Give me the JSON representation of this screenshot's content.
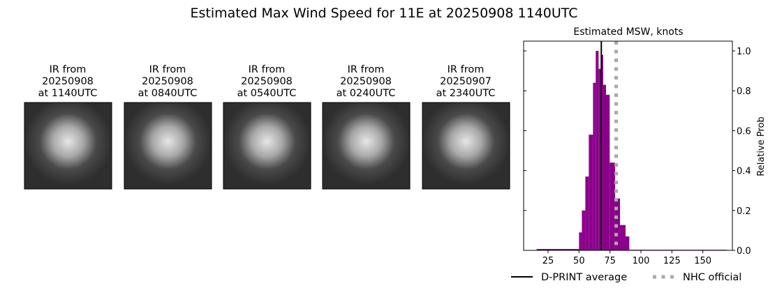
{
  "title": "Estimated Max Wind Speed for 11E at 20250908 1140UTC",
  "images": [
    {
      "line1": "IR from",
      "line2": "20250908",
      "line3": "at 1140UTC"
    },
    {
      "line1": "IR from",
      "line2": "20250908",
      "line3": "at 0840UTC"
    },
    {
      "line1": "IR from",
      "line2": "20250908",
      "line3": "at 0540UTC"
    },
    {
      "line1": "IR from",
      "line2": "20250908",
      "line3": "at 0240UTC"
    },
    {
      "line1": "IR from",
      "line2": "20250907",
      "line3": "at 2340UTC"
    }
  ],
  "chart_data": {
    "type": "bar",
    "title": "Estimated MSW, knots",
    "xlabel": "",
    "ylabel": "Relative Prob",
    "xlim": [
      10,
      175
    ],
    "ylim": [
      0,
      1.05
    ],
    "xticks": [
      25,
      50,
      75,
      100,
      125,
      150
    ],
    "yticks": [
      0.0,
      0.2,
      0.4,
      0.6,
      0.8,
      1.0
    ],
    "ytick_labels": [
      "0.0",
      "0.2",
      "0.4",
      "0.6",
      "0.8",
      "1.0"
    ],
    "y_axis_side": "right",
    "bar_color": "#8b008b",
    "bins": [
      {
        "x0": 15.8,
        "x1": 50,
        "value": 0.007
      },
      {
        "x0": 50,
        "x1": 52.3,
        "value": 0.09
      },
      {
        "x0": 52.3,
        "x1": 55.1,
        "value": 0.2
      },
      {
        "x0": 55.1,
        "x1": 57.9,
        "value": 0.37
      },
      {
        "x0": 57.9,
        "x1": 61.3,
        "value": 0.58
      },
      {
        "x0": 61.3,
        "x1": 63.5,
        "value": 0.84
      },
      {
        "x0": 63.5,
        "x1": 65.8,
        "value": 1.0
      },
      {
        "x0": 65.8,
        "x1": 68.0,
        "value": 0.91
      },
      {
        "x0": 68.0,
        "x1": 69.5,
        "value": 0.98
      },
      {
        "x0": 69.5,
        "x1": 71.8,
        "value": 0.83
      },
      {
        "x0": 71.8,
        "x1": 74.8,
        "value": 0.78
      },
      {
        "x0": 74.8,
        "x1": 79.1,
        "value": 0.44
      },
      {
        "x0": 79.1,
        "x1": 83.1,
        "value": 0.26
      },
      {
        "x0": 83.1,
        "x1": 87.6,
        "value": 0.127
      },
      {
        "x0": 87.6,
        "x1": 90.6,
        "value": 0.07
      },
      {
        "x0": 90.6,
        "x1": 169.4,
        "value": 0.003
      }
    ],
    "lines": [
      {
        "name": "D-PRINT average",
        "x": 68,
        "color": "#000000",
        "style": "solid"
      },
      {
        "name": "NHC official",
        "x": 80,
        "color": "#a9a9a9",
        "style": "dotted"
      }
    ],
    "legend_placement": "bottom"
  }
}
